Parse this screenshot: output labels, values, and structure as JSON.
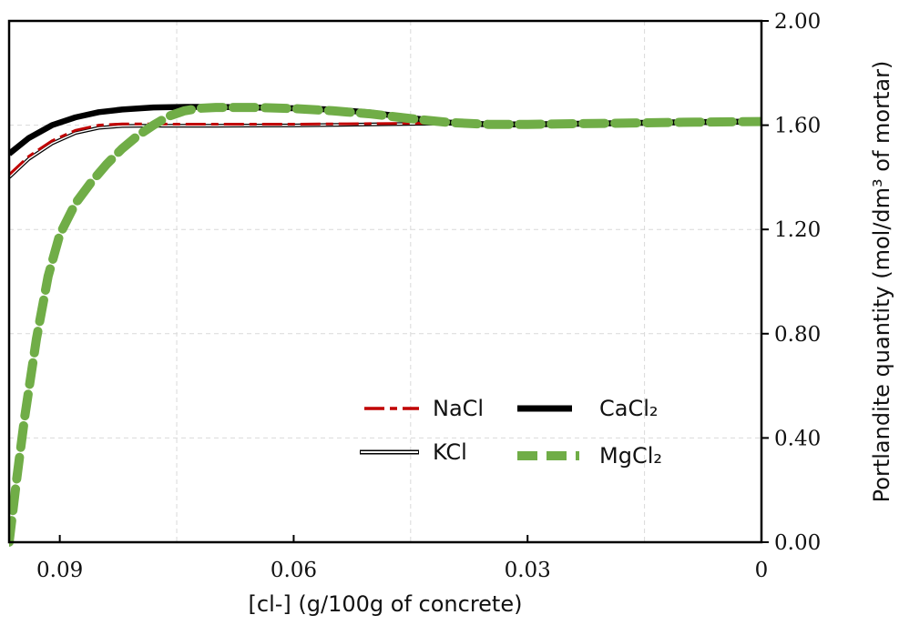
{
  "chart_data": {
    "type": "line",
    "title": "",
    "xlabel": "[cl-] (g/100g of concrete)",
    "ylabel": "Portlandite quantity (mol/dm³ of mortar)",
    "x_reversed": true,
    "xlim": [
      0.0965,
      0
    ],
    "ylim": [
      0,
      2.0
    ],
    "x_ticks": [
      0.09,
      0.06,
      0.03,
      0
    ],
    "x_tick_labels": [
      "0.09",
      "0.06",
      "0.03",
      "0"
    ],
    "y_ticks": [
      0,
      0.4,
      0.8,
      1.2,
      1.6,
      2.0
    ],
    "y_tick_labels": [
      "0.00",
      "0.40",
      "0.80",
      "1.20",
      "1.60",
      "2.00"
    ],
    "y_axis_side": "right",
    "grid": true,
    "legend_position": "lower-center",
    "series": [
      {
        "name": "NaCl",
        "style": "dashed-thin",
        "color": "#c00000",
        "x": [
          0.0965,
          0.094,
          0.091,
          0.088,
          0.085,
          0.082,
          0.079,
          0.075,
          0.07,
          0.06,
          0.05,
          0.04,
          0.035,
          0.03,
          0.02,
          0.01,
          0
        ],
        "y": [
          1.41,
          1.48,
          1.54,
          1.58,
          1.6,
          1.605,
          1.605,
          1.604,
          1.604,
          1.604,
          1.606,
          1.608,
          1.606,
          1.605,
          1.608,
          1.611,
          1.613
        ]
      },
      {
        "name": "CaCl₂",
        "style": "solid-thick",
        "color": "#000000",
        "x": [
          0.0965,
          0.094,
          0.091,
          0.088,
          0.085,
          0.082,
          0.078,
          0.074,
          0.07,
          0.065,
          0.06,
          0.055,
          0.05,
          0.045,
          0.04,
          0.035,
          0.03,
          0.02,
          0.01,
          0
        ],
        "y": [
          1.49,
          1.55,
          1.6,
          1.63,
          1.65,
          1.66,
          1.668,
          1.67,
          1.67,
          1.668,
          1.665,
          1.66,
          1.648,
          1.628,
          1.61,
          1.603,
          1.603,
          1.607,
          1.611,
          1.614
        ]
      },
      {
        "name": "KCl",
        "style": "double-thin",
        "color": "#000000",
        "x": [
          0.0965,
          0.094,
          0.091,
          0.088,
          0.085,
          0.082,
          0.079,
          0.075,
          0.07,
          0.06,
          0.05,
          0.04,
          0.035,
          0.03,
          0.02,
          0.01,
          0
        ],
        "y": [
          1.4,
          1.47,
          1.53,
          1.57,
          1.59,
          1.597,
          1.598,
          1.598,
          1.598,
          1.599,
          1.603,
          1.607,
          1.606,
          1.605,
          1.608,
          1.611,
          1.613
        ]
      },
      {
        "name": "MgCl₂",
        "style": "dashed-thick",
        "color": "#70ad47",
        "x": [
          0.0965,
          0.0955,
          0.0945,
          0.093,
          0.0915,
          0.09,
          0.088,
          0.086,
          0.084,
          0.082,
          0.08,
          0.078,
          0.076,
          0.074,
          0.072,
          0.07,
          0.065,
          0.06,
          0.055,
          0.05,
          0.045,
          0.04,
          0.035,
          0.03,
          0.02,
          0.01,
          0
        ],
        "y": [
          0.0,
          0.25,
          0.48,
          0.78,
          1.02,
          1.18,
          1.3,
          1.38,
          1.45,
          1.51,
          1.56,
          1.6,
          1.635,
          1.655,
          1.665,
          1.668,
          1.668,
          1.664,
          1.655,
          1.643,
          1.625,
          1.61,
          1.603,
          1.603,
          1.607,
          1.611,
          1.614
        ]
      }
    ]
  }
}
